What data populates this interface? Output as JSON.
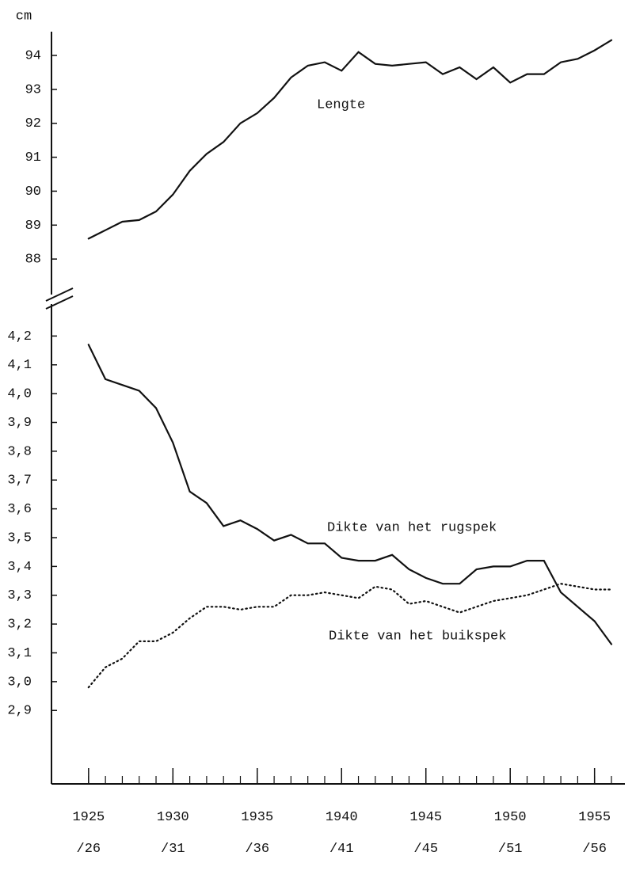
{
  "chart_data": [
    {
      "type": "line",
      "ylabel": "cm",
      "x": [
        1925,
        1926,
        1927,
        1928,
        1929,
        1930,
        1931,
        1932,
        1933,
        1934,
        1935,
        1936,
        1937,
        1938,
        1939,
        1940,
        1941,
        1942,
        1943,
        1944,
        1945,
        1946,
        1947,
        1948,
        1949,
        1950,
        1951,
        1952,
        1953,
        1954,
        1955,
        1956
      ],
      "xlim": [
        1922.8,
        1956.8
      ],
      "ylim": [
        87.0,
        94.7
      ],
      "yticks": [
        88,
        89,
        90,
        91,
        92,
        93,
        94
      ],
      "series": [
        {
          "name": "Lengte",
          "color": "#111111",
          "style": "solid",
          "values": [
            88.6,
            88.85,
            89.1,
            89.15,
            89.4,
            89.9,
            90.6,
            91.1,
            91.45,
            92.0,
            92.3,
            92.75,
            93.35,
            93.7,
            93.8,
            93.55,
            94.1,
            93.75,
            93.7,
            93.75,
            93.8,
            93.45,
            93.65,
            93.3,
            93.65,
            93.2,
            93.45,
            93.45,
            93.8,
            93.9,
            94.15,
            94.45
          ]
        }
      ]
    },
    {
      "type": "line",
      "x": [
        1925,
        1926,
        1927,
        1928,
        1929,
        1930,
        1931,
        1932,
        1933,
        1934,
        1935,
        1936,
        1937,
        1938,
        1939,
        1940,
        1941,
        1942,
        1943,
        1944,
        1945,
        1946,
        1947,
        1948,
        1949,
        1950,
        1951,
        1952,
        1953,
        1954,
        1955,
        1956
      ],
      "xlim": [
        1922.8,
        1956.8
      ],
      "xticks": [
        {
          "value": 1925,
          "label": "1925\n/26"
        },
        {
          "value": 1930,
          "label": "1930\n/31"
        },
        {
          "value": 1935,
          "label": "1935\n/36"
        },
        {
          "value": 1940,
          "label": "1940\n/41"
        },
        {
          "value": 1945,
          "label": "1945\n/45"
        },
        {
          "value": 1950,
          "label": "1950\n/51"
        },
        {
          "value": 1955,
          "label": "1955\n/56"
        }
      ],
      "ylim": [
        2.645,
        4.267
      ],
      "yticks": [
        {
          "value": 4.2,
          "label": "4,2"
        },
        {
          "value": 4.1,
          "label": "4,1"
        },
        {
          "value": 4.0,
          "label": "4,0"
        },
        {
          "value": 3.9,
          "label": "3,9"
        },
        {
          "value": 3.8,
          "label": "3,8"
        },
        {
          "value": 3.7,
          "label": "3,7"
        },
        {
          "value": 3.6,
          "label": "3,6"
        },
        {
          "value": 3.5,
          "label": "3,5"
        },
        {
          "value": 3.4,
          "label": "3,4"
        },
        {
          "value": 3.3,
          "label": "3,3"
        },
        {
          "value": 3.2,
          "label": "3,2"
        },
        {
          "value": 3.1,
          "label": "3,1"
        },
        {
          "value": 3.0,
          "label": "3,0"
        },
        {
          "value": 2.9,
          "label": "2,9"
        }
      ],
      "series": [
        {
          "name": "Dikte van het rugspek",
          "color": "#111111",
          "style": "solid",
          "values": [
            4.17,
            4.05,
            4.03,
            4.01,
            3.95,
            3.83,
            3.66,
            3.62,
            3.54,
            3.56,
            3.53,
            3.49,
            3.51,
            3.48,
            3.48,
            3.43,
            3.42,
            3.42,
            3.44,
            3.39,
            3.36,
            3.34,
            3.34,
            3.39,
            3.4,
            3.4,
            3.42,
            3.42,
            3.31,
            3.26,
            3.21,
            3.13
          ]
        },
        {
          "name": "Dikte van het buikspek",
          "color": "#111111",
          "style": "dotted",
          "values": [
            2.98,
            3.05,
            3.08,
            3.14,
            3.14,
            3.17,
            3.22,
            3.26,
            3.26,
            3.25,
            3.26,
            3.26,
            3.3,
            3.3,
            3.31,
            3.3,
            3.29,
            3.33,
            3.32,
            3.27,
            3.28,
            3.26,
            3.24,
            3.26,
            3.28,
            3.29,
            3.3,
            3.32,
            3.34,
            3.33,
            3.32,
            3.32
          ]
        }
      ]
    }
  ]
}
